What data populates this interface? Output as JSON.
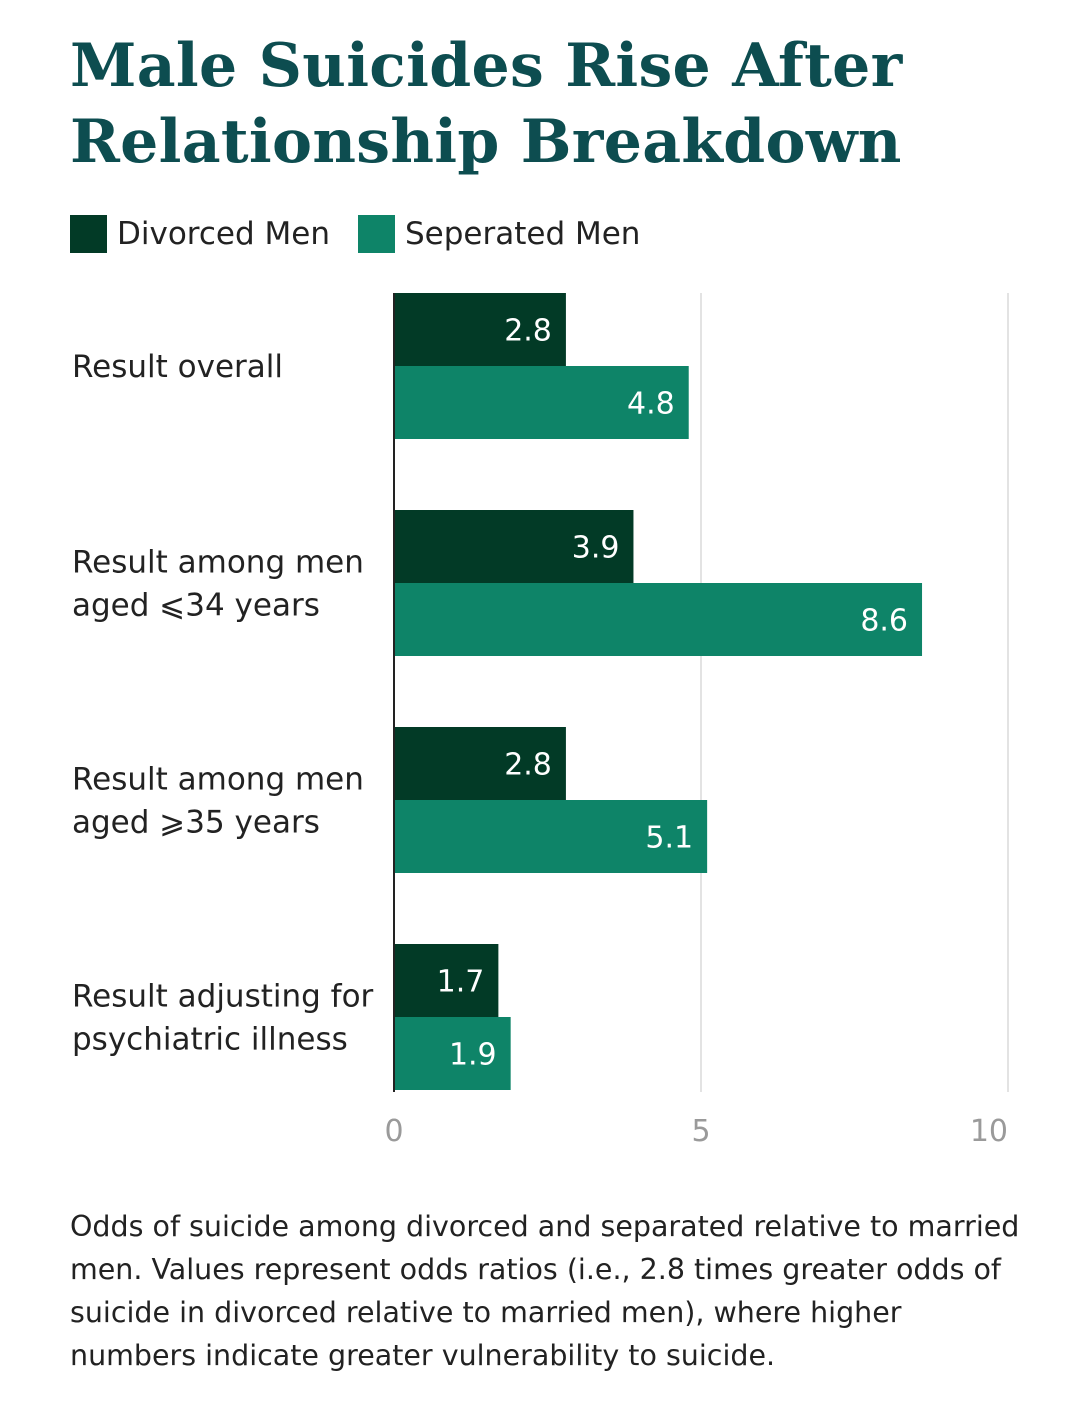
{
  "title": "Male Suicides Rise After Relationship Breakdown",
  "colors": {
    "divorced": "#023a26",
    "separated": "#0e8468",
    "grid": "#e3e3e3",
    "axis": "#222222",
    "tick": "#9a9a9a",
    "title": "#0d4d50"
  },
  "chart_data": {
    "type": "bar",
    "orientation": "horizontal",
    "title": "Male Suicides Rise After Relationship Breakdown",
    "categories": [
      [
        "Result overall"
      ],
      [
        "Result among men",
        "aged ⩽34 years"
      ],
      [
        "Result among men",
        "aged ⩾35 years"
      ],
      [
        "Result adjusting for",
        "psychiatric illness"
      ]
    ],
    "series": [
      {
        "name": "Divorced Men",
        "color": "#023a26",
        "values": [
          2.8,
          3.9,
          2.8,
          1.7
        ]
      },
      {
        "name": "Seperated Men",
        "color": "#0e8468",
        "values": [
          4.8,
          8.6,
          5.1,
          1.9
        ]
      }
    ],
    "xlim": [
      0,
      10
    ],
    "xticks": [
      0,
      5,
      10
    ],
    "grid": true,
    "legend": "top-left",
    "data_labels": true
  },
  "caption": "Odds of suicide among divorced and separated relative to married men. Values represent odds ratios (i.e., 2.8 times greater odds of suicide in divorced relative to married men), where higher numbers indicate greater vulnerability to suicide."
}
